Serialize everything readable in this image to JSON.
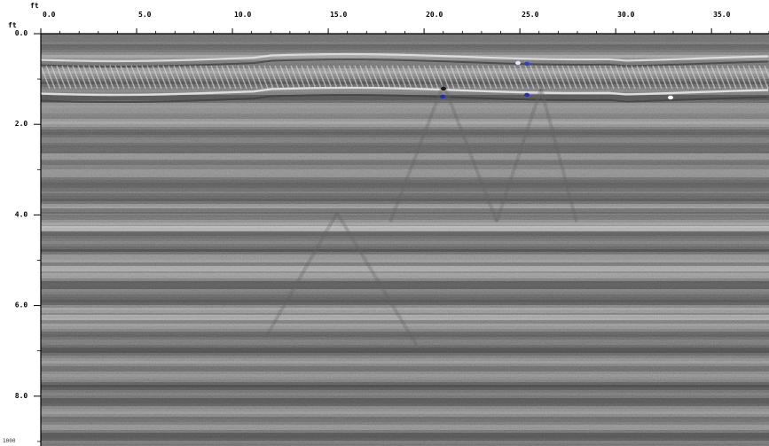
{
  "x_axis": {
    "unit": "ft",
    "ticks": [
      "0.0",
      "5.0",
      "10.0",
      "15.0",
      "20.0",
      "25.0",
      "30.0",
      "35.0"
    ],
    "range": [
      0,
      38
    ]
  },
  "y_axis": {
    "unit": "ft",
    "ticks": [
      "0.0",
      "2.0",
      "4.0",
      "6.0",
      "8.0"
    ],
    "range": [
      0,
      9.1
    ]
  },
  "corner_note": "1000",
  "colors": {
    "frame": "#000000",
    "background": "#ffffff"
  }
}
